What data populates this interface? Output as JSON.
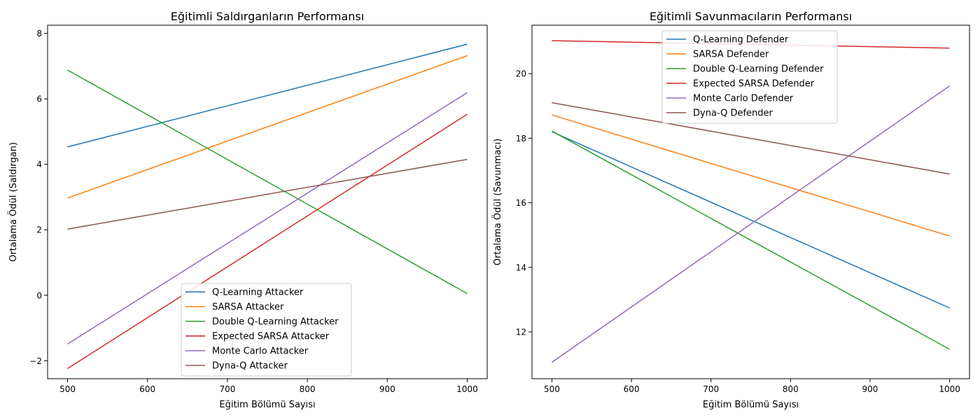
{
  "chart_data": [
    {
      "type": "line",
      "title": "Eğitimli Saldırganların Performansı",
      "xlabel": "Eğitim Bölümü Sayısı",
      "ylabel": "Ortalama Ödül (Saldırgan)",
      "x": [
        500,
        1000
      ],
      "xlim": [
        475,
        1025
      ],
      "ylim": [
        -2.55,
        8.25
      ],
      "xticks": [
        "500",
        "600",
        "700",
        "800",
        "900",
        "1000"
      ],
      "yticks": [
        "−2",
        "0",
        "2",
        "4",
        "6",
        "8"
      ],
      "grid": false,
      "legend_position": "bottom-center",
      "series": [
        {
          "name": "Q-Learning Attacker",
          "color": "#1f77b4",
          "values": [
            4.53,
            7.67
          ]
        },
        {
          "name": "SARSA Attacker",
          "color": "#ff7f0e",
          "values": [
            2.97,
            7.32
          ]
        },
        {
          "name": "Double Q-Learning Attacker",
          "color": "#2ca02c",
          "values": [
            6.88,
            0.05
          ]
        },
        {
          "name": "Expected SARSA Attacker",
          "color": "#d62728",
          "values": [
            -2.24,
            5.53
          ]
        },
        {
          "name": "Monte Carlo Attacker",
          "color": "#9467bd",
          "values": [
            -1.49,
            6.19
          ]
        },
        {
          "name": "Dyna-Q Attacker",
          "color": "#8c564b",
          "values": [
            2.02,
            4.15
          ]
        }
      ]
    },
    {
      "type": "line",
      "title": "Eğitimli Savunmacıların Performansı",
      "xlabel": "Eğitim Bölümü Sayısı",
      "ylabel": "Ortalama Ödül (Savunmacı)",
      "x": [
        500,
        1000
      ],
      "xlim": [
        475,
        1025
      ],
      "ylim": [
        10.55,
        21.5
      ],
      "xticks": [
        "500",
        "600",
        "700",
        "800",
        "900",
        "1000"
      ],
      "yticks": [
        "12",
        "14",
        "16",
        "18",
        "20"
      ],
      "grid": false,
      "legend_position": "top-center",
      "series": [
        {
          "name": "Q-Learning Defender",
          "color": "#1f77b4",
          "values": [
            18.2,
            12.74
          ]
        },
        {
          "name": "SARSA Defender",
          "color": "#ff7f0e",
          "values": [
            18.72,
            14.97
          ]
        },
        {
          "name": "Double Q-Learning Defender",
          "color": "#2ca02c",
          "values": [
            18.22,
            11.46
          ]
        },
        {
          "name": "Expected SARSA Defender",
          "color": "#d62728",
          "values": [
            21.02,
            20.79
          ]
        },
        {
          "name": "Monte Carlo Defender",
          "color": "#9467bd",
          "values": [
            11.06,
            19.62
          ]
        },
        {
          "name": "Dyna-Q Defender",
          "color": "#8c564b",
          "values": [
            19.1,
            16.89
          ]
        }
      ]
    }
  ]
}
